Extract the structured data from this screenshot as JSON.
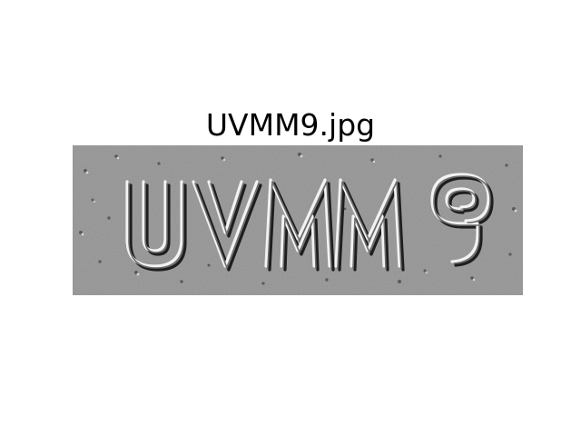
{
  "title": "UVMM9.jpg",
  "image": {
    "text": "UVMM9",
    "background_color": "#8f8f8f",
    "style": "embossed-edge captcha"
  }
}
